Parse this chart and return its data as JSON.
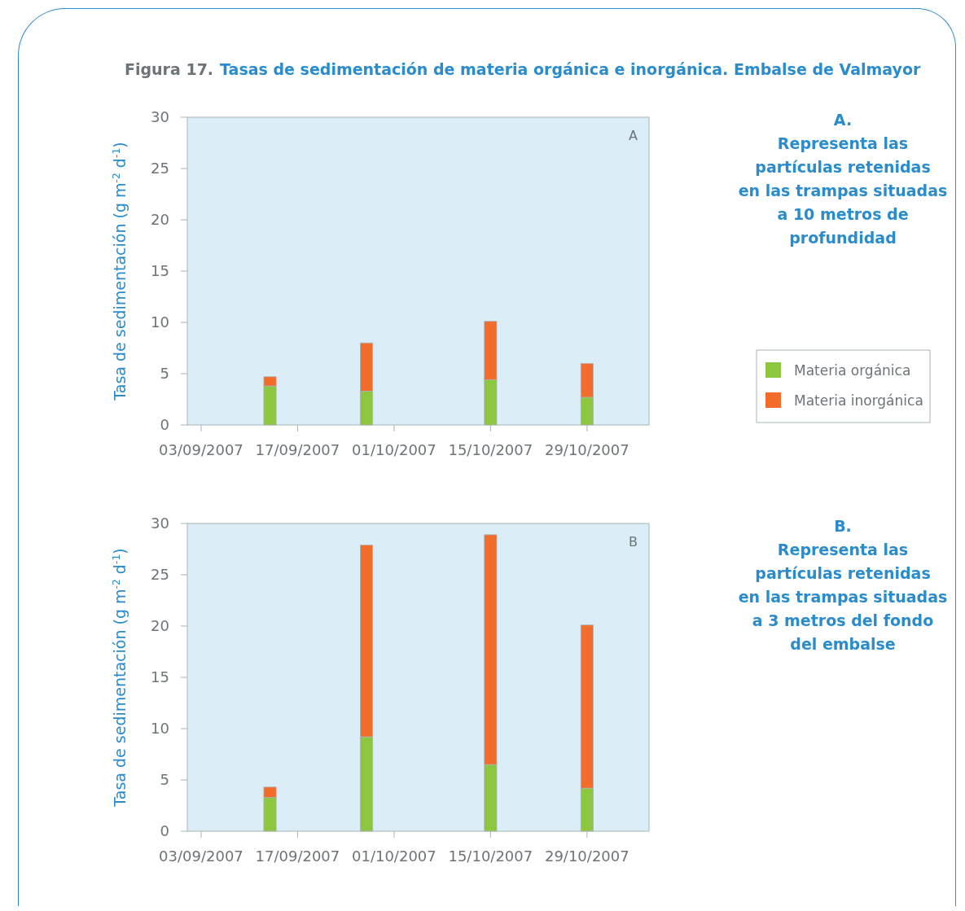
{
  "chart_data": [
    {
      "type": "bar",
      "title": "Figura 17.",
      "subtitle": "Tasas de sedimentación de materia orgánica e inorgánica. Embalse de Valmayor",
      "ylabel": "Tasa de sedimentación (g m$^{-2}$ d$^{-1}$)",
      "annotations": [
        "A",
        "A.\nRepresenta las\npartículas retenidas\nen las trampas situadas\na 10 metros de\nprofundidad"
      ],
      "x": [
        "2007-09-13",
        "2007-09-27",
        "2007-10-15",
        "2007-10-29"
      ],
      "stacked": true,
      "series": [
        {
          "name": "Materia orgánica",
          "color": "#8dc63f",
          "values": [
            3.8,
            3.3,
            4.4,
            2.7
          ]
        },
        {
          "name": "Materia inorgánica",
          "color": "#f26c2b",
          "values": [
            0.9,
            4.7,
            5.7,
            3.3
          ]
        }
      ],
      "xlim": [
        "2007-09-01",
        "2007-11-07"
      ],
      "xticks": [
        {
          "value": "2007-09-03",
          "label": "03/09/2007"
        },
        {
          "value": "2007-09-17",
          "label": "17/09/2007"
        },
        {
          "value": "2007-10-01",
          "label": "01/10/2007"
        },
        {
          "value": "2007-10-15",
          "label": "15/10/2007"
        },
        {
          "value": "2007-10-29",
          "label": "29/10/2007"
        }
      ],
      "ylim": [
        0,
        30
      ],
      "yticks": [
        0,
        5,
        10,
        15,
        20,
        25,
        30
      ],
      "legend": "right"
    },
    {
      "type": "bar",
      "ylabel": "Tasa de sedimentación (g m$^{-2}$ d$^{-1}$)",
      "annotations": [
        "B",
        "B.\nRepresenta las\npartículas retenidas\nen las trampas situadas\na 3 metros del fondo\ndel embalse"
      ],
      "x": [
        "2007-09-13",
        "2007-09-27",
        "2007-10-15",
        "2007-10-29"
      ],
      "stacked": true,
      "series": [
        {
          "color": "#8dc63f",
          "values": [
            3.3,
            9.2,
            6.5,
            4.2
          ]
        },
        {
          "color": "#f26c2b",
          "values": [
            1.0,
            18.7,
            22.4,
            15.9
          ]
        }
      ],
      "xlim": [
        "2007-09-01",
        "2007-11-07"
      ],
      "xticks": [
        {
          "value": "2007-09-03",
          "label": "03/09/2007"
        },
        {
          "value": "2007-09-17",
          "label": "17/09/2007"
        },
        {
          "value": "2007-10-01",
          "label": "01/10/2007"
        },
        {
          "value": "2007-10-15",
          "label": "15/10/2007"
        },
        {
          "value": "2007-10-29",
          "label": "29/10/2007"
        }
      ],
      "ylim": [
        0,
        30
      ],
      "yticks": [
        0,
        5,
        10,
        15,
        20,
        25,
        30
      ]
    }
  ]
}
